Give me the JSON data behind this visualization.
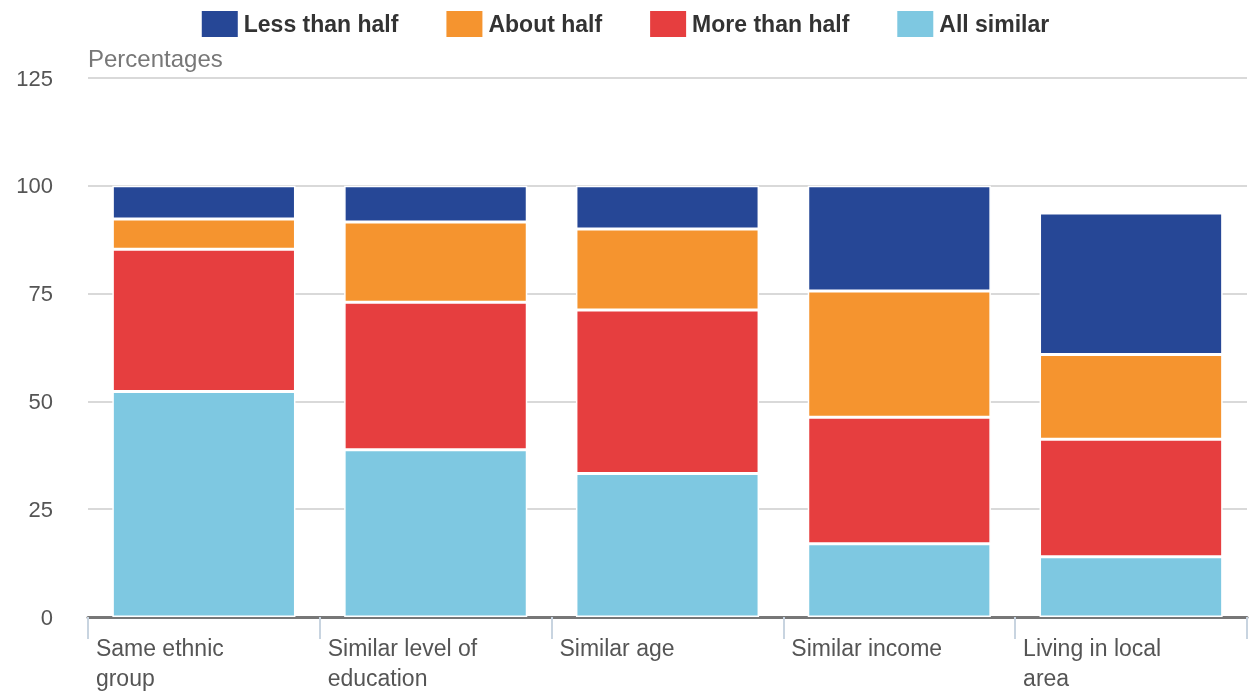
{
  "chart_data": {
    "type": "bar",
    "ylabel": "Percentages",
    "stacked": true,
    "categories": [
      "Same ethnic group",
      "Similar level of education",
      "Similar age",
      "Similar income",
      "Living in local area"
    ],
    "series": [
      {
        "name": "All similar",
        "color": "#7ec8e1",
        "values": [
          52.3,
          38.8,
          33.3,
          17,
          14
        ]
      },
      {
        "name": "More than half",
        "color": "#e63e3f",
        "values": [
          33,
          34.2,
          37.9,
          29.3,
          27.2
        ]
      },
      {
        "name": "About half",
        "color": "#f5942f",
        "values": [
          7,
          18.6,
          18.8,
          29.3,
          19.7
        ]
      },
      {
        "name": "Less than half",
        "color": "#264796",
        "values": [
          7.7,
          8.4,
          10,
          24.4,
          32.8
        ]
      }
    ],
    "ylim": [
      0,
      125
    ],
    "yticks": [
      0,
      25,
      50,
      75,
      100,
      125
    ],
    "grid": "y",
    "legend": "top"
  }
}
